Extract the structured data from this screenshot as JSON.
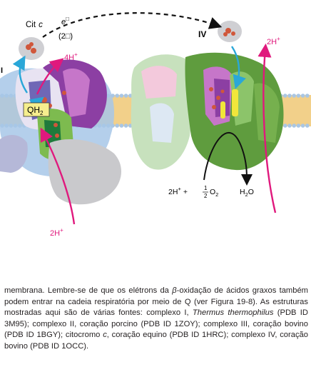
{
  "labels": {
    "complex_i": "I",
    "complex_iv": "IV",
    "cyt_c": "Cit",
    "cyt_c_italic": "c",
    "electron_e": "e",
    "electron_sup": "□",
    "electron_count": "(2□)",
    "proton_4h": "4H",
    "proton_2h_top": "2H",
    "proton_2h_bottom": "2H",
    "proton_plus": "+",
    "qh2": "QH",
    "qh2_sub": "2",
    "reaction_left": "2H",
    "reaction_plus_o2": "+",
    "reaction_half_num": "1",
    "reaction_half_den": "2",
    "reaction_o": "O",
    "reaction_o_sub": "2",
    "reaction_water": "H",
    "reaction_water_sub": "2",
    "reaction_water_o": "O"
  },
  "caption": {
    "p1": "membrana. Lembre-se de que os elétrons da ",
    "beta": "β",
    "p2": "-oxidação de ácidos graxos também podem entrar na cadeia respiratória por meio de Q (ver Figura 19-8). As estruturas mostradas aqui são de várias fontes: complexo I, ",
    "thermus": "Thermus thermophilus",
    "p3": " (PDB ID 3M95); complexo II, coração porcino (PDB ID 1ZOY); complexo III, coração bovino (PDB ID 1BGY); citocromo ",
    "c": "c",
    "p4": ", coração equino (PDB ID 1HRC); complexo IV, coração bovino (PDB ID 1OCC)."
  },
  "colors": {
    "membrane": "#f2d08a",
    "lipid_head": "#a9c6e4",
    "magenta_arrow": "#e0197d",
    "blue_arrow": "#2aa7d8",
    "qh2_box": "#f6ee8e"
  }
}
